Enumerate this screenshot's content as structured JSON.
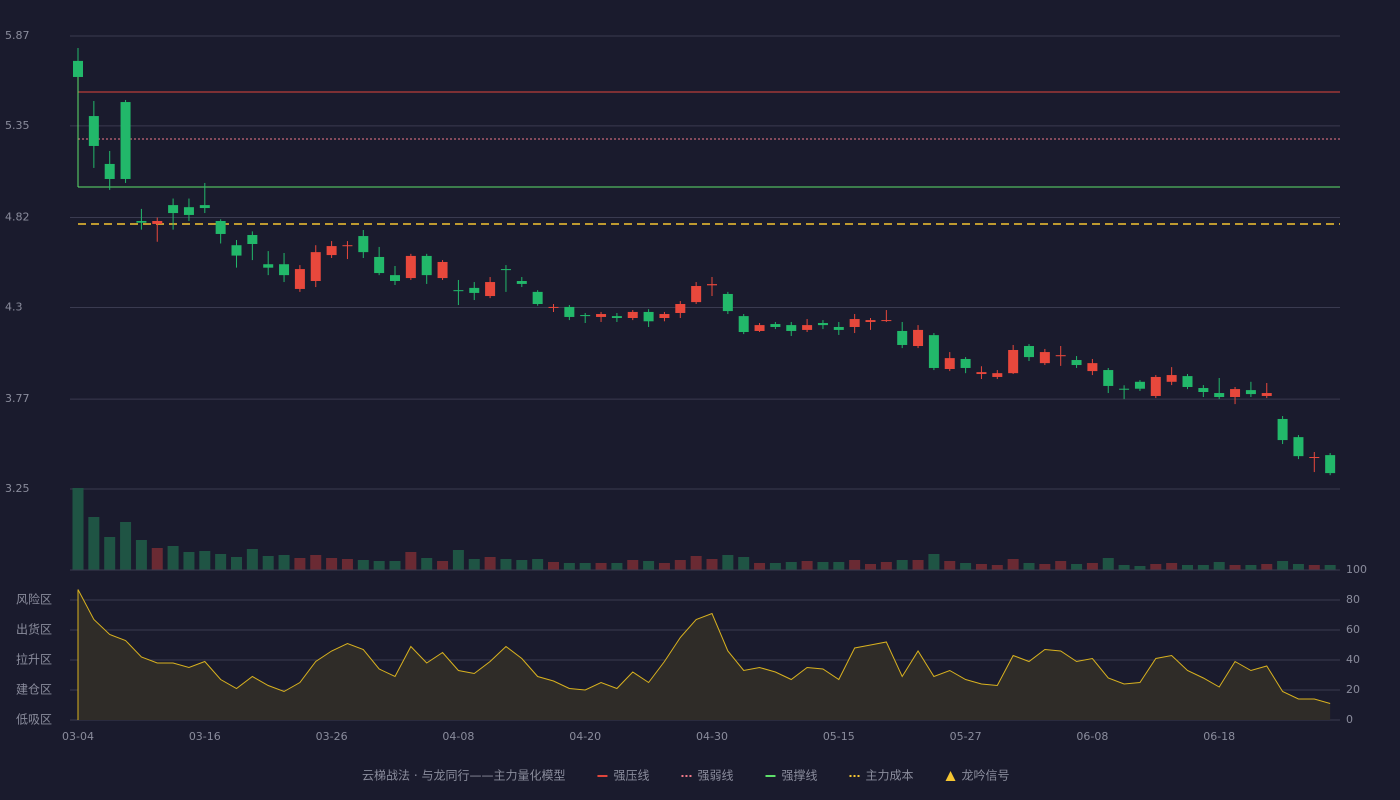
{
  "chart_data": [
    {
      "type": "candlestick",
      "categories": [
        "03-04",
        null,
        null,
        null,
        null,
        null,
        null,
        null,
        "03-16",
        null,
        null,
        null,
        null,
        null,
        null,
        null,
        "03-26",
        null,
        null,
        null,
        null,
        null,
        null,
        null,
        "04-08",
        null,
        null,
        null,
        null,
        null,
        null,
        null,
        "04-20",
        null,
        null,
        null,
        null,
        null,
        null,
        null,
        "04-30",
        null,
        null,
        null,
        null,
        null,
        null,
        null,
        "05-15",
        null,
        null,
        null,
        null,
        null,
        null,
        null,
        "05-27",
        null,
        null,
        null,
        null,
        null,
        null,
        null,
        "06-08",
        null,
        null,
        null,
        null,
        null,
        null,
        null,
        "06-18",
        null,
        null,
        null,
        null,
        null,
        null,
        null
      ],
      "open": [
        5.726,
        5.407,
        5.13,
        5.488,
        4.8,
        4.783,
        4.892,
        4.88,
        4.892,
        4.8,
        4.66,
        4.719,
        4.55,
        4.55,
        4.407,
        4.453,
        4.603,
        4.655,
        4.713,
        4.592,
        4.487,
        4.47,
        4.598,
        4.47,
        4.4,
        4.413,
        4.366,
        4.522,
        4.453,
        4.39,
        4.3,
        4.303,
        4.256,
        4.245,
        4.25,
        4.239,
        4.274,
        4.239,
        4.268,
        4.331,
        4.428,
        4.378,
        4.25,
        4.164,
        4.204,
        4.198,
        4.17,
        4.21,
        4.187,
        4.187,
        4.216,
        4.222,
        4.164,
        4.077,
        4.14,
        3.944,
        4.002,
        3.915,
        3.898,
        3.92,
        4.077,
        3.978,
        4.018,
        3.996,
        3.932,
        3.938,
        3.83,
        3.87,
        3.788,
        3.87,
        3.903,
        3.834,
        3.805,
        3.782,
        3.822,
        3.788,
        3.655,
        3.55,
        3.43,
        3.446
      ],
      "high": [
        5.8,
        5.494,
        5.205,
        5.5,
        4.87,
        4.82,
        4.93,
        4.93,
        5.02,
        4.81,
        4.69,
        4.74,
        4.626,
        4.615,
        4.545,
        4.66,
        4.684,
        4.684,
        4.748,
        4.65,
        4.54,
        4.61,
        4.61,
        4.574,
        4.459,
        4.447,
        4.476,
        4.545,
        4.476,
        4.4,
        4.32,
        4.314,
        4.268,
        4.274,
        4.268,
        4.285,
        4.29,
        4.274,
        4.337,
        4.447,
        4.476,
        4.39,
        4.262,
        4.21,
        4.216,
        4.216,
        4.233,
        4.227,
        4.216,
        4.262,
        4.239,
        4.285,
        4.216,
        4.198,
        4.152,
        4.042,
        4.013,
        3.96,
        3.938,
        4.083,
        4.088,
        4.06,
        4.077,
        4.019,
        4.002,
        3.95,
        3.85,
        3.88,
        3.909,
        3.955,
        3.915,
        3.851,
        3.892,
        3.84,
        3.87,
        3.863,
        3.672,
        3.562,
        3.464,
        3.458
      ],
      "low": [
        5.633,
        5.107,
        4.98,
        5.02,
        4.75,
        4.68,
        4.75,
        4.8,
        4.846,
        4.67,
        4.53,
        4.574,
        4.487,
        4.447,
        4.39,
        4.418,
        4.586,
        4.58,
        4.586,
        4.487,
        4.43,
        4.459,
        4.436,
        4.459,
        4.314,
        4.343,
        4.354,
        4.39,
        4.418,
        4.31,
        4.274,
        4.227,
        4.21,
        4.216,
        4.216,
        4.227,
        4.187,
        4.22,
        4.239,
        4.32,
        4.366,
        4.262,
        4.146,
        4.158,
        4.175,
        4.135,
        4.158,
        4.175,
        4.141,
        4.152,
        4.17,
        4.216,
        4.065,
        4.065,
        3.938,
        3.932,
        3.92,
        3.886,
        3.886,
        3.915,
        3.99,
        3.967,
        3.962,
        3.95,
        3.909,
        3.805,
        3.77,
        3.817,
        3.776,
        3.851,
        3.828,
        3.782,
        3.77,
        3.741,
        3.782,
        3.776,
        3.51,
        3.423,
        3.348,
        3.33
      ],
      "close": [
        5.633,
        5.234,
        5.043,
        5.043,
        4.79,
        4.8,
        4.846,
        4.835,
        4.875,
        4.725,
        4.6,
        4.667,
        4.53,
        4.487,
        4.522,
        4.62,
        4.655,
        4.66,
        4.62,
        4.499,
        4.453,
        4.598,
        4.487,
        4.563,
        4.395,
        4.384,
        4.447,
        4.516,
        4.436,
        4.32,
        4.303,
        4.245,
        4.25,
        4.262,
        4.239,
        4.274,
        4.22,
        4.262,
        4.32,
        4.424,
        4.435,
        4.279,
        4.158,
        4.198,
        4.187,
        4.164,
        4.198,
        4.198,
        4.17,
        4.233,
        4.227,
        4.227,
        4.083,
        4.17,
        3.95,
        4.007,
        3.95,
        3.926,
        3.92,
        4.054,
        4.013,
        4.042,
        4.024,
        3.967,
        3.978,
        3.846,
        3.828,
        3.83,
        3.898,
        3.909,
        3.84,
        3.811,
        3.782,
        3.828,
        3.799,
        3.805,
        3.533,
        3.44,
        3.435,
        3.342
      ],
      "volume": [
        82,
        53,
        33,
        48,
        30,
        22,
        24,
        18,
        19,
        16,
        13,
        21,
        14,
        15,
        12,
        15,
        12,
        11,
        10,
        9,
        9,
        18,
        12,
        9,
        20,
        11,
        13,
        11,
        10,
        11,
        8,
        7,
        7,
        7,
        7,
        10,
        9,
        7,
        10,
        14,
        11,
        15,
        13,
        7,
        7,
        8,
        9,
        8,
        8,
        10,
        6,
        8,
        10,
        10,
        16,
        9,
        7,
        6,
        5,
        11,
        7,
        6,
        9,
        6,
        7,
        12,
        5,
        4,
        6,
        7,
        5,
        5,
        8,
        5,
        5,
        6,
        9,
        6,
        5,
        5
      ],
      "up_color": "#e8483c",
      "down_color": "#22b86a",
      "up_volume_color": "#6a2a33",
      "down_volume_color": "#1f5444",
      "ylim": [
        3.25,
        5.87
      ],
      "yticks": [
        3.25,
        3.77,
        4.3,
        4.82,
        5.35,
        5.87
      ],
      "grid": true,
      "levels": [
        {
          "name": "强压线",
          "value": 5.546,
          "color": "#e0453c",
          "style": "solid"
        },
        {
          "name": "强弱线",
          "value": 5.274,
          "color": "#f07a8a",
          "style": "dotted"
        },
        {
          "name": "强撑线",
          "value": 4.997,
          "color": "#5ee06a",
          "style": "solid"
        },
        {
          "name": "主力成本",
          "value": 4.783,
          "color": "#f5c531",
          "style": "dashed"
        }
      ],
      "signal": {
        "name": "龙吟信号",
        "color": "#f5c531"
      },
      "legend_title": "云梯战法 · 与龙同行——主力量化模型"
    },
    {
      "type": "line",
      "series": [
        {
          "color": "#d9b21f",
          "values": [
            87,
            67,
            57,
            53,
            42,
            38,
            38,
            35,
            39,
            27,
            21,
            29,
            23,
            19,
            25,
            39,
            46,
            51,
            47,
            34,
            29,
            49,
            38,
            45,
            33,
            31,
            39,
            49,
            41,
            29,
            26,
            21,
            20,
            25,
            21,
            32,
            25,
            39,
            55,
            67,
            71,
            46,
            33,
            35,
            32,
            27,
            35,
            34,
            27,
            48,
            50,
            52,
            29,
            46,
            29,
            33,
            27,
            24,
            23,
            43,
            39,
            47,
            46,
            39,
            41,
            28,
            24,
            25,
            41,
            43,
            33,
            28,
            22,
            39,
            33,
            36,
            19,
            14,
            14,
            11
          ]
        }
      ],
      "area_color": "#2f2c28",
      "ylim": [
        0,
        100
      ],
      "yticks": [
        0,
        20,
        40,
        60,
        80,
        100
      ],
      "ytick_colors": [
        "#e8444c",
        "#e8444c",
        "#4a8fe0",
        "#d84ad8",
        "#e89a30",
        "#6ed84a"
      ],
      "zones": [
        {
          "label": "风险区",
          "value": 80,
          "color": "#e89a30"
        },
        {
          "label": "出货区",
          "value": 60,
          "color": "#d84ad8"
        },
        {
          "label": "拉升区",
          "value": 40,
          "color": "#4a8fe0"
        },
        {
          "label": "建仓区",
          "value": 20,
          "color": "#e8444c"
        },
        {
          "label": "低吸区",
          "value": 0,
          "color": "#e8444c"
        }
      ],
      "grid": true
    }
  ]
}
